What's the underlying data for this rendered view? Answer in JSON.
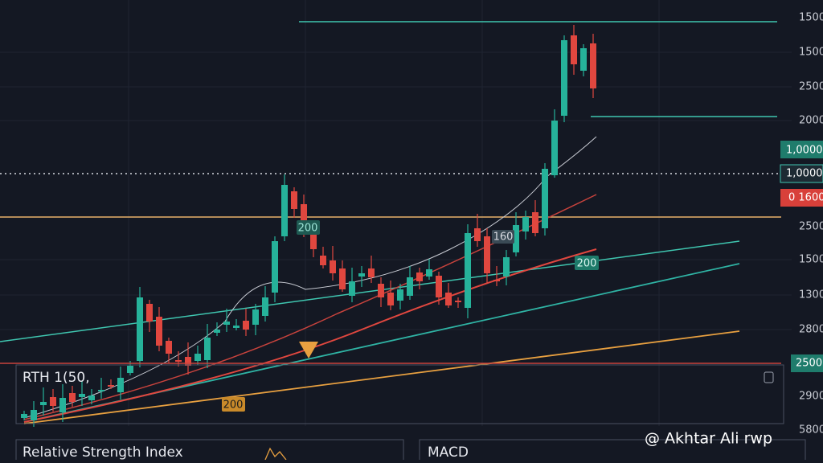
{
  "price_axis": [
    "1500",
    "1500",
    "2500",
    "2000",
    "2500",
    "1500",
    "1300",
    "2800",
    "2900",
    "5800"
  ],
  "badges": [
    "1,0000",
    "1,0000",
    "0 1600",
    "2500"
  ],
  "chart_labels": [
    "200",
    "160",
    "200",
    "200"
  ],
  "indicator_panel": {
    "title": "RTH  1(50,"
  },
  "bottom_panels": [
    "Relative Strength Index",
    "MACD"
  ],
  "watermark": "@ Akhtar Ali rwp"
}
